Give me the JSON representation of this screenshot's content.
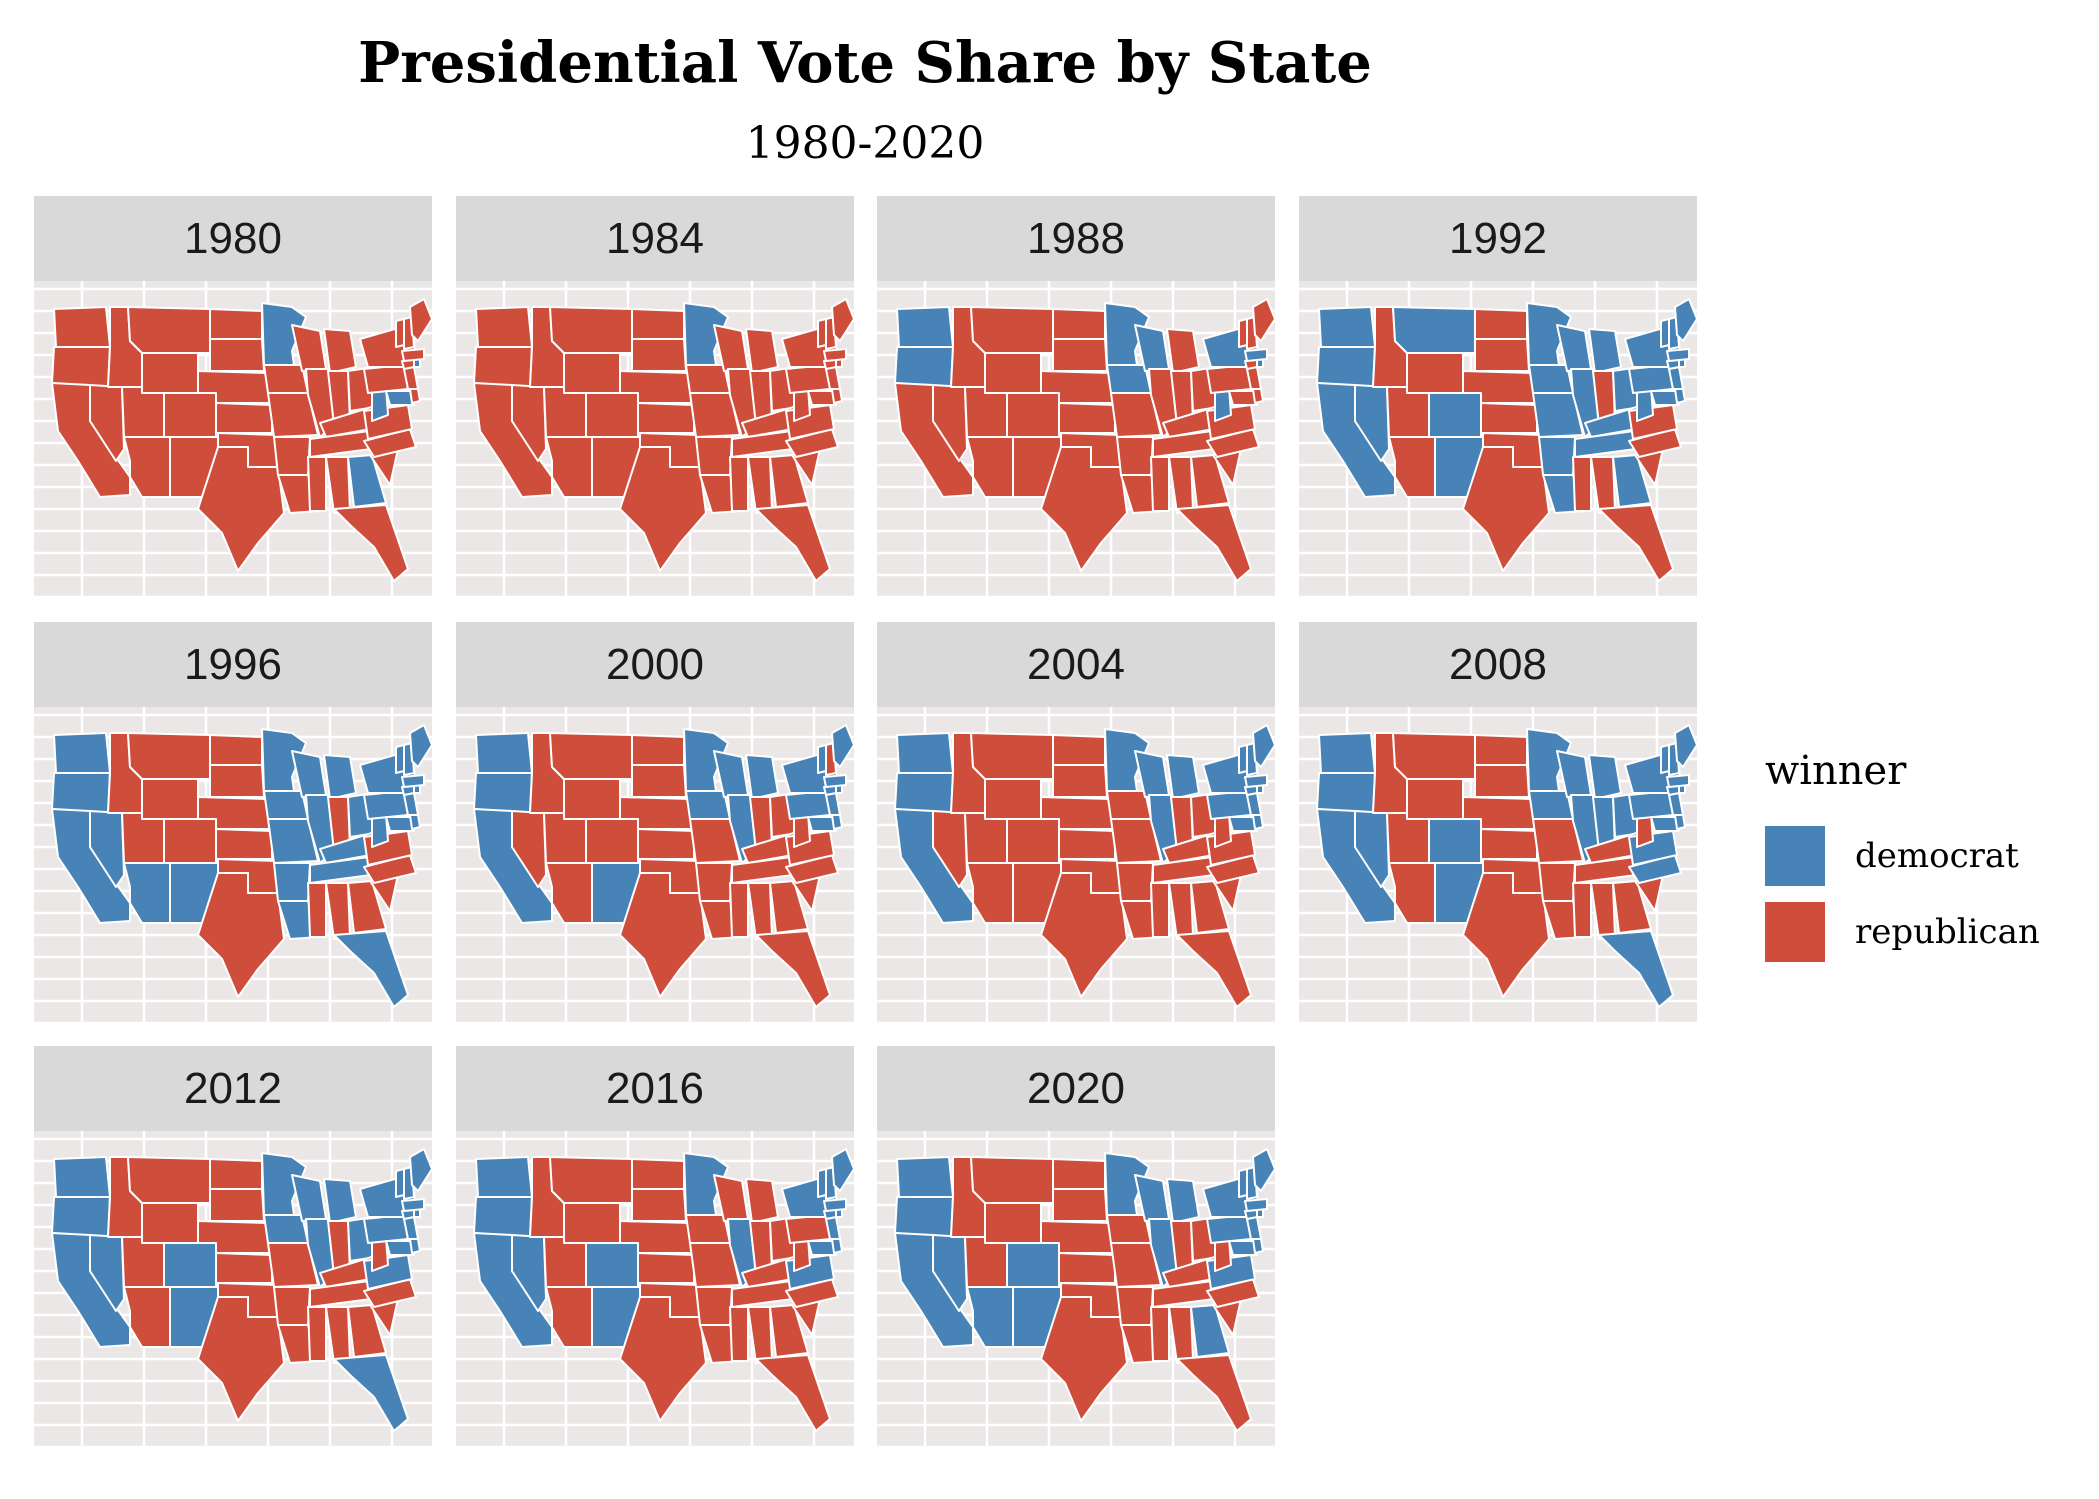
{
  "title": "Presidential Vote Share by State",
  "subtitle": "1980-2020",
  "colors": {
    "democrat": "#4783b6",
    "republican": "#cf4d3b",
    "panel_bg": "#ebe7e6",
    "strip_bg": "#d9d9d9",
    "border": "#ffffff"
  },
  "chart_data": {
    "type": "choropleth-facets",
    "title": "Presidential Vote Share by State",
    "subtitle": "1980-2020",
    "legend": {
      "title": "winner",
      "placement": "right",
      "items": [
        {
          "key": "democrat",
          "label": "democrat",
          "color": "#4783b6"
        },
        {
          "key": "republican",
          "label": "republican",
          "color": "#cf4d3b"
        }
      ]
    },
    "facets": [
      {
        "year": "1980",
        "winners": {
          "MN": "democrat",
          "WV": "democrat",
          "MD": "democrat",
          "GA": "democrat",
          "RI": "democrat"
        }
      },
      {
        "year": "1984",
        "winners": {
          "MN": "democrat"
        }
      },
      {
        "year": "1988",
        "winners": {
          "WA": "democrat",
          "OR": "democrat",
          "MN": "democrat",
          "IA": "democrat",
          "WI": "democrat",
          "WV": "democrat",
          "NY": "democrat",
          "MA": "democrat",
          "RI": "democrat"
        }
      },
      {
        "year": "1992",
        "winners": {
          "WA": "democrat",
          "OR": "democrat",
          "CA": "democrat",
          "NV": "democrat",
          "MT": "democrat",
          "CO": "democrat",
          "NM": "democrat",
          "MN": "democrat",
          "IA": "democrat",
          "WI": "democrat",
          "MI": "democrat",
          "IL": "democrat",
          "MO": "democrat",
          "AR": "democrat",
          "LA": "democrat",
          "TN": "democrat",
          "KY": "democrat",
          "OH": "democrat",
          "WV": "democrat",
          "PA": "democrat",
          "NY": "democrat",
          "MD": "democrat",
          "DE": "democrat",
          "NJ": "democrat",
          "GA": "democrat",
          "ME": "democrat",
          "NH": "democrat",
          "VT": "democrat",
          "MA": "democrat",
          "CT": "democrat",
          "RI": "democrat"
        }
      },
      {
        "year": "1996",
        "winners": {
          "WA": "democrat",
          "OR": "democrat",
          "CA": "democrat",
          "NV": "democrat",
          "AZ": "democrat",
          "NM": "democrat",
          "MN": "democrat",
          "IA": "democrat",
          "WI": "democrat",
          "MI": "democrat",
          "IL": "democrat",
          "MO": "democrat",
          "AR": "democrat",
          "LA": "democrat",
          "TN": "democrat",
          "KY": "democrat",
          "OH": "democrat",
          "WV": "democrat",
          "PA": "democrat",
          "NY": "democrat",
          "MD": "democrat",
          "DE": "democrat",
          "NJ": "democrat",
          "FL": "democrat",
          "ME": "democrat",
          "NH": "democrat",
          "VT": "democrat",
          "MA": "democrat",
          "CT": "democrat",
          "RI": "democrat"
        }
      },
      {
        "year": "2000",
        "winners": {
          "WA": "democrat",
          "OR": "democrat",
          "CA": "democrat",
          "NM": "democrat",
          "MN": "democrat",
          "IA": "democrat",
          "WI": "democrat",
          "MI": "democrat",
          "IL": "democrat",
          "PA": "democrat",
          "NY": "democrat",
          "MD": "democrat",
          "DE": "democrat",
          "NJ": "democrat",
          "ME": "democrat",
          "VT": "democrat",
          "MA": "democrat",
          "CT": "democrat",
          "RI": "democrat"
        }
      },
      {
        "year": "2004",
        "winners": {
          "WA": "democrat",
          "OR": "democrat",
          "CA": "democrat",
          "MN": "democrat",
          "WI": "democrat",
          "MI": "democrat",
          "IL": "democrat",
          "PA": "democrat",
          "NY": "democrat",
          "MD": "democrat",
          "DE": "democrat",
          "NJ": "democrat",
          "ME": "democrat",
          "NH": "democrat",
          "VT": "democrat",
          "MA": "democrat",
          "CT": "democrat",
          "RI": "democrat"
        }
      },
      {
        "year": "2008",
        "winners": {
          "WA": "democrat",
          "OR": "democrat",
          "CA": "democrat",
          "NV": "democrat",
          "CO": "democrat",
          "NM": "democrat",
          "MN": "democrat",
          "IA": "democrat",
          "WI": "democrat",
          "MI": "democrat",
          "IL": "democrat",
          "IN": "democrat",
          "OH": "democrat",
          "PA": "democrat",
          "NY": "democrat",
          "VA": "democrat",
          "NC": "democrat",
          "MD": "democrat",
          "DE": "democrat",
          "NJ": "democrat",
          "FL": "democrat",
          "ME": "democrat",
          "NH": "democrat",
          "VT": "democrat",
          "MA": "democrat",
          "CT": "democrat",
          "RI": "democrat"
        }
      },
      {
        "year": "2012",
        "winners": {
          "WA": "democrat",
          "OR": "democrat",
          "CA": "democrat",
          "NV": "democrat",
          "CO": "democrat",
          "NM": "democrat",
          "MN": "democrat",
          "IA": "democrat",
          "WI": "democrat",
          "MI": "democrat",
          "IL": "democrat",
          "OH": "democrat",
          "PA": "democrat",
          "NY": "democrat",
          "VA": "democrat",
          "MD": "democrat",
          "DE": "democrat",
          "NJ": "democrat",
          "FL": "democrat",
          "ME": "democrat",
          "NH": "democrat",
          "VT": "democrat",
          "MA": "democrat",
          "CT": "democrat",
          "RI": "democrat"
        }
      },
      {
        "year": "2016",
        "winners": {
          "WA": "democrat",
          "OR": "democrat",
          "CA": "democrat",
          "NV": "democrat",
          "CO": "democrat",
          "NM": "democrat",
          "MN": "democrat",
          "IL": "democrat",
          "VA": "democrat",
          "MD": "democrat",
          "DE": "democrat",
          "NJ": "democrat",
          "NY": "democrat",
          "ME": "democrat",
          "NH": "democrat",
          "VT": "democrat",
          "MA": "democrat",
          "CT": "democrat",
          "RI": "democrat"
        }
      },
      {
        "year": "2020",
        "winners": {
          "WA": "democrat",
          "OR": "democrat",
          "CA": "democrat",
          "NV": "democrat",
          "AZ": "democrat",
          "CO": "democrat",
          "NM": "democrat",
          "MN": "democrat",
          "WI": "democrat",
          "MI": "democrat",
          "IL": "democrat",
          "PA": "democrat",
          "NY": "democrat",
          "VA": "democrat",
          "MD": "democrat",
          "DE": "democrat",
          "NJ": "democrat",
          "GA": "democrat",
          "ME": "democrat",
          "NH": "democrat",
          "VT": "democrat",
          "MA": "democrat",
          "CT": "democrat",
          "RI": "democrat"
        }
      }
    ]
  }
}
